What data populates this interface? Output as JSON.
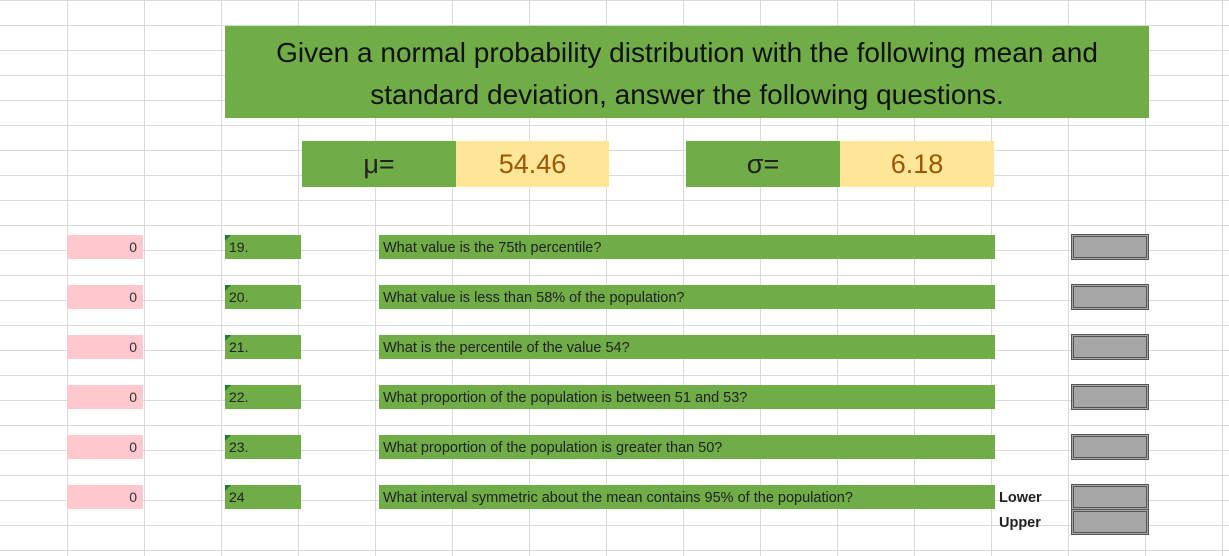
{
  "sheet": {
    "title_line1": "Given a normal probability distribution with the following mean and",
    "title_line2": "standard deviation, answer the following questions.",
    "mean_label": "μ=",
    "mean_value": "54.46",
    "sd_label": "σ=",
    "sd_value": "6.18",
    "questions": [
      {
        "result": "0",
        "number": "19.",
        "text": "What value is the 75th percentile?"
      },
      {
        "result": "0",
        "number": "20.",
        "text": "What value is less than 58% of the population?"
      },
      {
        "result": "0",
        "number": "21.",
        "text": "What is the percentile of the value 54?"
      },
      {
        "result": "0",
        "number": "22.",
        "text": "What proportion of the population is between 51 and 53?"
      },
      {
        "result": "0",
        "number": "23.",
        "text": "What proportion of the population is greater than 50?"
      },
      {
        "result": "0",
        "number": "24",
        "text": "What interval symmetric about the mean contains 95% of the population?"
      }
    ],
    "lower_label": "Lower",
    "upper_label": "Upper"
  },
  "colors": {
    "header_green": "#70ad47",
    "value_yellow": "#ffe699",
    "value_text": "#9c5700",
    "result_pink": "#ffc7ce",
    "answer_gray": "#a6a6a6"
  }
}
